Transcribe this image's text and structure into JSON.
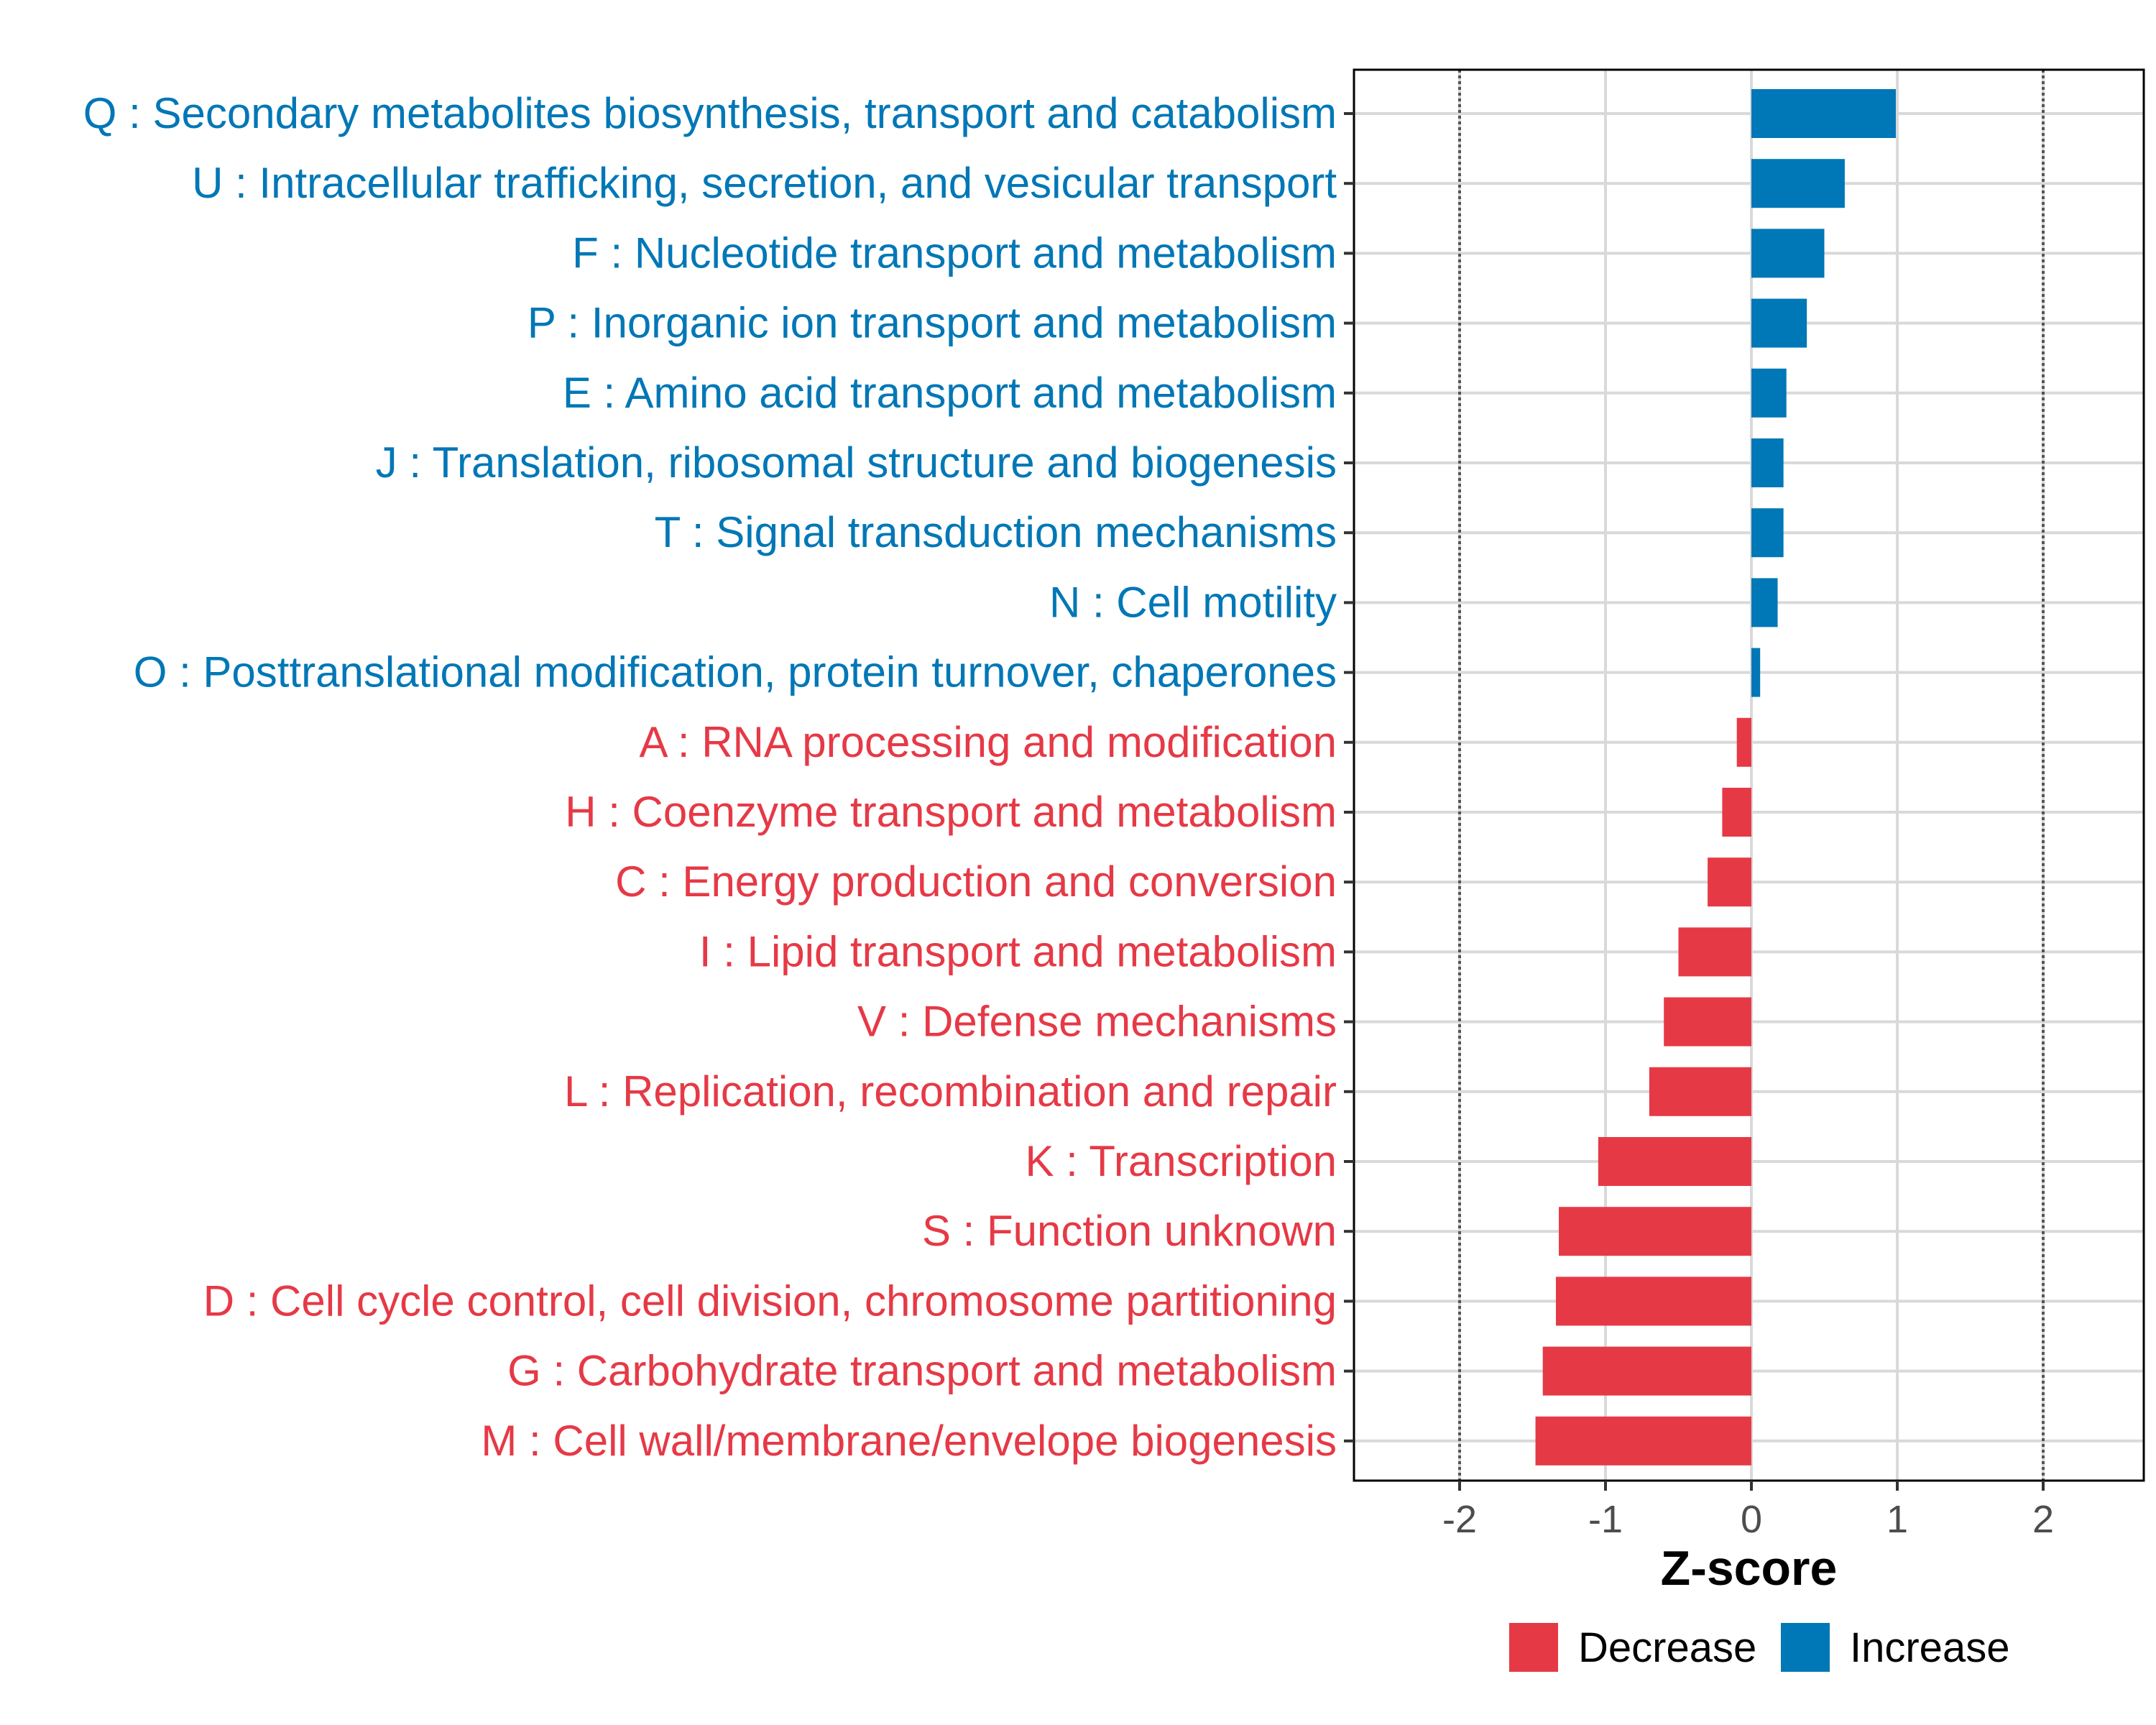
{
  "chart_data": {
    "type": "bar",
    "orientation": "horizontal",
    "title": "",
    "xlabel": "Z-score",
    "ylabel": "",
    "xlim": [
      -2.7,
      2.7
    ],
    "xticks": [
      -2,
      -1,
      0,
      1,
      2
    ],
    "xtick_labels": [
      "-2",
      "-1",
      "0",
      "1",
      "2"
    ],
    "reference_lines": [
      -2,
      2
    ],
    "grid": true,
    "categories": [
      "Q : Secondary metabolites biosynthesis, transport and catabolism",
      "U : Intracellular trafficking, secretion, and vesicular transport",
      "F : Nucleotide transport and metabolism",
      "P : Inorganic ion transport and metabolism",
      "E : Amino acid transport and metabolism",
      "J : Translation, ribosomal structure and biogenesis",
      "T : Signal transduction mechanisms",
      "N : Cell motility",
      "O : Posttranslational modification, protein turnover, chaperones",
      "A : RNA processing and modification",
      "H : Coenzyme transport and metabolism",
      "C : Energy production and conversion",
      "I : Lipid transport and metabolism",
      "V : Defense mechanisms",
      "L : Replication, recombination and repair",
      "K : Transcription",
      "S : Function unknown",
      "D : Cell cycle control, cell division, chromosome partitioning",
      "G : Carbohydrate transport and metabolism",
      "M : Cell wall/membrane/envelope biogenesis"
    ],
    "values": [
      0.99,
      0.64,
      0.5,
      0.38,
      0.24,
      0.22,
      0.22,
      0.18,
      0.06,
      -0.1,
      -0.2,
      -0.3,
      -0.5,
      -0.6,
      -0.7,
      -1.05,
      -1.32,
      -1.34,
      -1.43,
      -1.48
    ],
    "groups": [
      "Increase",
      "Increase",
      "Increase",
      "Increase",
      "Increase",
      "Increase",
      "Increase",
      "Increase",
      "Increase",
      "Decrease",
      "Decrease",
      "Decrease",
      "Decrease",
      "Decrease",
      "Decrease",
      "Decrease",
      "Decrease",
      "Decrease",
      "Decrease",
      "Decrease"
    ],
    "legend": {
      "position": "bottom",
      "items": [
        {
          "label": "Decrease",
          "color": "#E63946"
        },
        {
          "label": "Increase",
          "color": "#0077B6"
        }
      ]
    },
    "colors": {
      "Decrease": "#E63946",
      "Increase": "#0077B6",
      "grid": "#d9d9d9",
      "reference_line": "#555555",
      "panel_border": "#000000"
    }
  }
}
